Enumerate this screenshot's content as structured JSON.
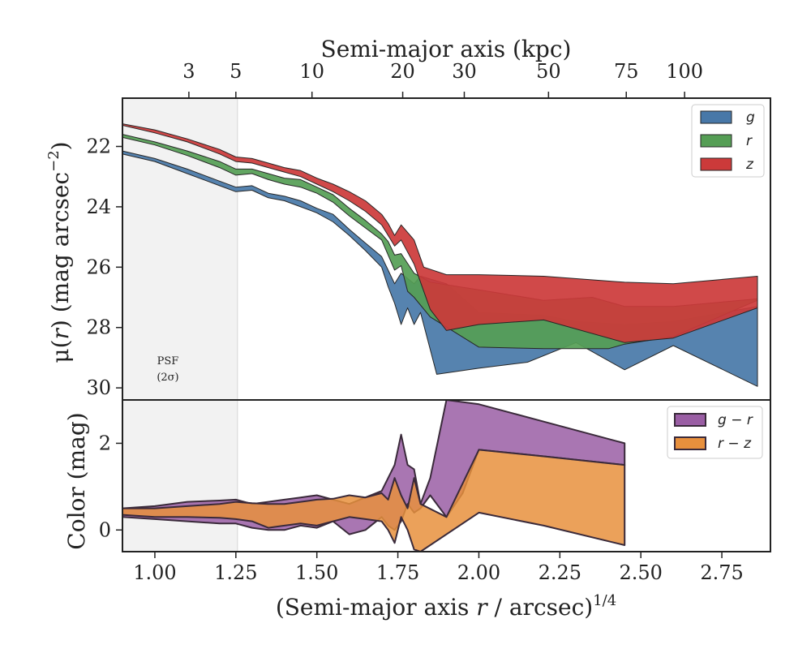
{
  "chart_data": [
    {
      "type": "area",
      "panel": "surface-brightness",
      "xlabel_prefix": "(Semi-major axis ",
      "xlabel_var": "r",
      "xlabel_suffix": " / arcsec)",
      "xlabel_sup": "1/4",
      "ylabel_prefix": "μ(",
      "ylabel_var": "r",
      "ylabel_suffix": ") (mag arcsec",
      "ylabel_sup": "−2",
      "ylabel_close": ")",
      "top_xlabel": "Semi-major axis (kpc)",
      "top_ticks": [
        {
          "x": 1.105,
          "label": "3"
        },
        {
          "x": 1.25,
          "label": "5"
        },
        {
          "x": 1.485,
          "label": "10"
        },
        {
          "x": 1.765,
          "label": "20"
        },
        {
          "x": 1.955,
          "label": "30"
        },
        {
          "x": 2.215,
          "label": "50"
        },
        {
          "x": 2.455,
          "label": "75"
        },
        {
          "x": 2.635,
          "label": "100"
        }
      ],
      "xlim": [
        0.9,
        2.9
      ],
      "ylim": [
        30.4,
        20.4
      ],
      "y_inverted": true,
      "yticks": [
        22,
        24,
        26,
        28,
        30
      ],
      "ytick_labels": [
        "22",
        "24",
        "26",
        "28",
        "30"
      ],
      "psf_band": {
        "x_from": 0.9,
        "x_to": 1.255,
        "label_line1": "PSF",
        "label_line2": "(2σ)"
      },
      "legend_position": "top-right",
      "series": [
        {
          "name": "g",
          "color": "#4878a8",
          "upper": [
            [
              0.9,
              22.15
            ],
            [
              1.0,
              22.4
            ],
            [
              1.1,
              22.75
            ],
            [
              1.2,
              23.15
            ],
            [
              1.25,
              23.35
            ],
            [
              1.3,
              23.3
            ],
            [
              1.35,
              23.55
            ],
            [
              1.4,
              23.65
            ],
            [
              1.45,
              23.8
            ],
            [
              1.5,
              24.05
            ],
            [
              1.55,
              24.25
            ],
            [
              1.6,
              24.75
            ],
            [
              1.65,
              25.2
            ],
            [
              1.7,
              25.65
            ],
            [
              1.72,
              26.1
            ],
            [
              1.74,
              26.55
            ],
            [
              1.76,
              26.2
            ],
            [
              1.8,
              26.55
            ],
            [
              1.82,
              26.3
            ],
            [
              1.9,
              26.55
            ],
            [
              2.0,
              27.5
            ],
            [
              2.2,
              27.6
            ],
            [
              2.3,
              27.8
            ],
            [
              2.45,
              27.9
            ],
            [
              2.6,
              27.8
            ],
            [
              2.86,
              27.3
            ]
          ],
          "lower": [
            [
              0.9,
              22.25
            ],
            [
              1.0,
              22.5
            ],
            [
              1.1,
              22.9
            ],
            [
              1.2,
              23.3
            ],
            [
              1.25,
              23.5
            ],
            [
              1.3,
              23.45
            ],
            [
              1.35,
              23.7
            ],
            [
              1.4,
              23.8
            ],
            [
              1.45,
              24.0
            ],
            [
              1.5,
              24.2
            ],
            [
              1.55,
              24.5
            ],
            [
              1.6,
              24.95
            ],
            [
              1.65,
              25.45
            ],
            [
              1.7,
              26.0
            ],
            [
              1.72,
              26.65
            ],
            [
              1.74,
              27.2
            ],
            [
              1.76,
              27.9
            ],
            [
              1.78,
              27.35
            ],
            [
              1.8,
              27.9
            ],
            [
              1.82,
              27.5
            ],
            [
              1.87,
              29.55
            ],
            [
              2.0,
              29.35
            ],
            [
              2.15,
              29.15
            ],
            [
              2.3,
              28.5
            ],
            [
              2.45,
              29.4
            ],
            [
              2.6,
              28.6
            ],
            [
              2.86,
              29.95
            ]
          ]
        },
        {
          "name": "r",
          "color": "#559e55",
          "upper": [
            [
              0.9,
              21.6
            ],
            [
              1.0,
              21.85
            ],
            [
              1.1,
              22.15
            ],
            [
              1.2,
              22.5
            ],
            [
              1.25,
              22.75
            ],
            [
              1.3,
              22.75
            ],
            [
              1.35,
              22.9
            ],
            [
              1.4,
              23.05
            ],
            [
              1.45,
              23.1
            ],
            [
              1.5,
              23.35
            ],
            [
              1.55,
              23.6
            ],
            [
              1.6,
              24.05
            ],
            [
              1.65,
              24.45
            ],
            [
              1.7,
              24.9
            ],
            [
              1.72,
              25.15
            ],
            [
              1.74,
              25.6
            ],
            [
              1.76,
              25.55
            ],
            [
              1.8,
              26.2
            ],
            [
              1.85,
              26.5
            ],
            [
              2.0,
              26.75
            ],
            [
              2.2,
              27.1
            ],
            [
              2.35,
              27.0
            ],
            [
              2.45,
              27.3
            ],
            [
              2.6,
              27.3
            ],
            [
              2.86,
              27.05
            ]
          ],
          "lower": [
            [
              0.9,
              21.7
            ],
            [
              1.0,
              21.95
            ],
            [
              1.1,
              22.3
            ],
            [
              1.2,
              22.7
            ],
            [
              1.25,
              22.95
            ],
            [
              1.3,
              22.9
            ],
            [
              1.35,
              23.1
            ],
            [
              1.4,
              23.25
            ],
            [
              1.45,
              23.35
            ],
            [
              1.5,
              23.55
            ],
            [
              1.55,
              23.85
            ],
            [
              1.6,
              24.3
            ],
            [
              1.65,
              24.7
            ],
            [
              1.7,
              25.1
            ],
            [
              1.72,
              25.6
            ],
            [
              1.74,
              26.1
            ],
            [
              1.76,
              25.95
            ],
            [
              1.78,
              26.8
            ],
            [
              1.8,
              27.0
            ],
            [
              1.85,
              27.65
            ],
            [
              2.0,
              28.65
            ],
            [
              2.2,
              28.7
            ],
            [
              2.4,
              28.7
            ],
            [
              2.45,
              28.55
            ],
            [
              2.6,
              28.3
            ],
            [
              2.86,
              27.1
            ]
          ]
        },
        {
          "name": "z",
          "color": "#cc3a3a",
          "upper": [
            [
              0.9,
              21.25
            ],
            [
              1.0,
              21.45
            ],
            [
              1.1,
              21.75
            ],
            [
              1.2,
              22.1
            ],
            [
              1.25,
              22.35
            ],
            [
              1.3,
              22.4
            ],
            [
              1.35,
              22.55
            ],
            [
              1.4,
              22.7
            ],
            [
              1.45,
              22.8
            ],
            [
              1.5,
              23.05
            ],
            [
              1.55,
              23.25
            ],
            [
              1.6,
              23.5
            ],
            [
              1.65,
              23.8
            ],
            [
              1.7,
              24.25
            ],
            [
              1.72,
              24.55
            ],
            [
              1.74,
              24.95
            ],
            [
              1.76,
              24.6
            ],
            [
              1.8,
              25.1
            ],
            [
              1.83,
              26.0
            ],
            [
              1.9,
              26.25
            ],
            [
              2.0,
              26.25
            ],
            [
              2.2,
              26.3
            ],
            [
              2.45,
              26.5
            ],
            [
              2.6,
              26.55
            ],
            [
              2.86,
              26.3
            ]
          ],
          "lower": [
            [
              0.9,
              21.3
            ],
            [
              1.0,
              21.55
            ],
            [
              1.1,
              21.85
            ],
            [
              1.2,
              22.25
            ],
            [
              1.25,
              22.5
            ],
            [
              1.3,
              22.55
            ],
            [
              1.35,
              22.7
            ],
            [
              1.4,
              22.85
            ],
            [
              1.45,
              23.0
            ],
            [
              1.5,
              23.25
            ],
            [
              1.55,
              23.5
            ],
            [
              1.6,
              23.8
            ],
            [
              1.65,
              24.15
            ],
            [
              1.7,
              24.6
            ],
            [
              1.72,
              24.95
            ],
            [
              1.74,
              25.3
            ],
            [
              1.76,
              25.1
            ],
            [
              1.8,
              25.9
            ],
            [
              1.85,
              27.4
            ],
            [
              1.9,
              28.1
            ],
            [
              2.0,
              27.9
            ],
            [
              2.2,
              27.75
            ],
            [
              2.45,
              28.5
            ],
            [
              2.6,
              28.35
            ],
            [
              2.86,
              27.35
            ]
          ]
        }
      ]
    },
    {
      "type": "area",
      "panel": "color",
      "ylabel": "Color (mag)",
      "xlim": [
        0.9,
        2.9
      ],
      "ylim": [
        -0.5,
        3.0
      ],
      "yticks": [
        0,
        2
      ],
      "ytick_labels": [
        "0",
        "2"
      ],
      "xticks": [
        1.0,
        1.25,
        1.5,
        1.75,
        2.0,
        2.25,
        2.5,
        2.75
      ],
      "xtick_labels": [
        "1.00",
        "1.25",
        "1.50",
        "1.75",
        "2.00",
        "2.25",
        "2.50",
        "2.75"
      ],
      "legend_position": "top-right",
      "series": [
        {
          "name": "g − r",
          "legend_a": "g",
          "legend_b": "r",
          "color": "#9a5ea4",
          "upper": [
            [
              0.9,
              0.5
            ],
            [
              1.0,
              0.55
            ],
            [
              1.1,
              0.65
            ],
            [
              1.2,
              0.68
            ],
            [
              1.25,
              0.7
            ],
            [
              1.3,
              0.6
            ],
            [
              1.35,
              0.65
            ],
            [
              1.4,
              0.7
            ],
            [
              1.45,
              0.75
            ],
            [
              1.5,
              0.8
            ],
            [
              1.55,
              0.7
            ],
            [
              1.6,
              0.6
            ],
            [
              1.65,
              0.75
            ],
            [
              1.7,
              0.9
            ],
            [
              1.72,
              1.2
            ],
            [
              1.74,
              1.5
            ],
            [
              1.76,
              2.2
            ],
            [
              1.78,
              1.5
            ],
            [
              1.8,
              1.4
            ],
            [
              1.82,
              0.6
            ],
            [
              1.85,
              1.2
            ],
            [
              1.9,
              3.0
            ],
            [
              2.0,
              2.9
            ],
            [
              2.2,
              2.5
            ],
            [
              2.45,
              2.0
            ]
          ],
          "lower": [
            [
              0.9,
              0.3
            ],
            [
              1.0,
              0.25
            ],
            [
              1.1,
              0.2
            ],
            [
              1.2,
              0.15
            ],
            [
              1.25,
              0.15
            ],
            [
              1.3,
              0.05
            ],
            [
              1.35,
              0.0
            ],
            [
              1.4,
              0.0
            ],
            [
              1.45,
              0.1
            ],
            [
              1.5,
              0.05
            ],
            [
              1.55,
              0.2
            ],
            [
              1.6,
              -0.1
            ],
            [
              1.65,
              0.0
            ],
            [
              1.7,
              0.3
            ],
            [
              1.72,
              0.1
            ],
            [
              1.74,
              0.0
            ],
            [
              1.76,
              0.2
            ],
            [
              1.78,
              0.6
            ],
            [
              1.8,
              0.4
            ],
            [
              1.82,
              0.5
            ],
            [
              1.85,
              0.8
            ],
            [
              1.9,
              0.3
            ],
            [
              1.95,
              0.85
            ],
            [
              2.0,
              1.85
            ],
            [
              2.2,
              1.7
            ],
            [
              2.45,
              1.5
            ]
          ]
        },
        {
          "name": "r − z",
          "legend_a": "r",
          "legend_b": "z",
          "color": "#e8903d",
          "upper": [
            [
              0.9,
              0.5
            ],
            [
              1.0,
              0.5
            ],
            [
              1.1,
              0.55
            ],
            [
              1.2,
              0.6
            ],
            [
              1.25,
              0.65
            ],
            [
              1.3,
              0.62
            ],
            [
              1.35,
              0.6
            ],
            [
              1.4,
              0.6
            ],
            [
              1.45,
              0.65
            ],
            [
              1.5,
              0.7
            ],
            [
              1.55,
              0.72
            ],
            [
              1.6,
              0.8
            ],
            [
              1.65,
              0.75
            ],
            [
              1.7,
              0.85
            ],
            [
              1.72,
              0.7
            ],
            [
              1.74,
              1.2
            ],
            [
              1.76,
              0.8
            ],
            [
              1.78,
              0.5
            ],
            [
              1.8,
              1.2
            ],
            [
              1.82,
              0.6
            ],
            [
              1.9,
              0.3
            ],
            [
              2.0,
              1.85
            ],
            [
              2.2,
              1.7
            ],
            [
              2.45,
              1.5
            ]
          ],
          "lower": [
            [
              0.9,
              0.35
            ],
            [
              1.0,
              0.3
            ],
            [
              1.1,
              0.3
            ],
            [
              1.2,
              0.28
            ],
            [
              1.25,
              0.25
            ],
            [
              1.3,
              0.2
            ],
            [
              1.35,
              0.05
            ],
            [
              1.4,
              0.1
            ],
            [
              1.45,
              0.15
            ],
            [
              1.5,
              0.1
            ],
            [
              1.55,
              0.2
            ],
            [
              1.6,
              0.3
            ],
            [
              1.65,
              0.25
            ],
            [
              1.7,
              0.2
            ],
            [
              1.72,
              0.0
            ],
            [
              1.74,
              -0.3
            ],
            [
              1.76,
              0.3
            ],
            [
              1.78,
              0.0
            ],
            [
              1.8,
              -0.45
            ],
            [
              1.82,
              -0.5
            ],
            [
              2.0,
              0.4
            ],
            [
              2.2,
              0.1
            ],
            [
              2.45,
              -0.35
            ]
          ]
        }
      ]
    }
  ]
}
